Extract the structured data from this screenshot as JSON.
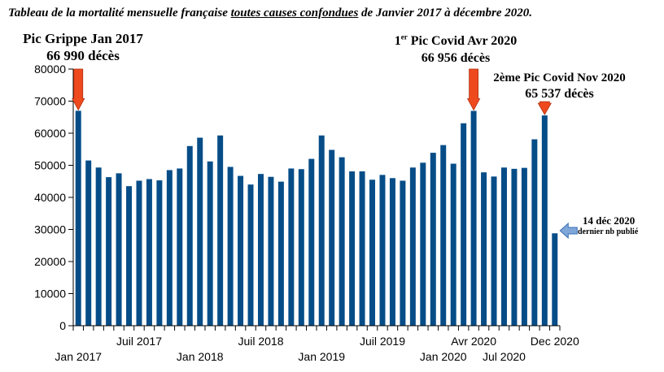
{
  "title": {
    "part1": "Tableau de la mortalité mensuelle française ",
    "part2": "toutes causes confondues",
    "part3": " de Janvier 2017 à décembre 2020."
  },
  "annotations": {
    "peak_flu": {
      "line1": "Pic Grippe Jan 2017",
      "line2": "66 990 décès"
    },
    "peak_covid1": {
      "prefix": "1",
      "sup": "er",
      "line1": " Pic Covid Avr 2020",
      "line2": "66 956 décès"
    },
    "peak_covid2": {
      "line1": "2ème Pic Covid Nov 2020",
      "line2": "65 537 décès"
    },
    "last": {
      "line1": "14  déc 2020",
      "line2": "dernier nb publié"
    }
  },
  "colors": {
    "bar": "#064d88",
    "arrow": "#ee4a1e",
    "arrow_edge": "#b03010",
    "side_arrow": "#7fa6d9",
    "side_arrow_edge": "#3a6fb5"
  },
  "chart_data": {
    "type": "bar",
    "ylim": [
      0,
      80000
    ],
    "yticks": [
      0,
      10000,
      20000,
      30000,
      40000,
      50000,
      60000,
      70000,
      80000
    ],
    "grid": false,
    "xtick_labels": [
      {
        "index": 0,
        "label": "Jan 2017",
        "row": 2
      },
      {
        "index": 6,
        "label": "Juil 2017",
        "row": 1
      },
      {
        "index": 12,
        "label": "Jan 2018",
        "row": 2
      },
      {
        "index": 18,
        "label": "Juil 2018",
        "row": 1
      },
      {
        "index": 24,
        "label": "Jan 2019",
        "row": 2
      },
      {
        "index": 30,
        "label": "Juil 2019",
        "row": 1
      },
      {
        "index": 36,
        "label": "Jan 2020",
        "row": 2
      },
      {
        "index": 39,
        "label": "Avr 2020",
        "row": 1
      },
      {
        "index": 42,
        "label": "Jul 2020",
        "row": 2
      },
      {
        "index": 47,
        "label": "Dec 2020",
        "row": 1
      }
    ],
    "values": [
      66990,
      51500,
      49300,
      46300,
      47500,
      43500,
      45200,
      45700,
      45300,
      48500,
      49000,
      56000,
      58600,
      51200,
      59300,
      49500,
      46700,
      44000,
      47300,
      46400,
      44900,
      49000,
      48800,
      52000,
      59300,
      54800,
      52500,
      48100,
      48100,
      45500,
      47000,
      46000,
      45200,
      49300,
      50800,
      53900,
      56300,
      50500,
      63100,
      66956,
      47800,
      46500,
      49300,
      48900,
      49200,
      58100,
      65537,
      28800
    ],
    "highlight_arrows": [
      0,
      39,
      46
    ]
  }
}
